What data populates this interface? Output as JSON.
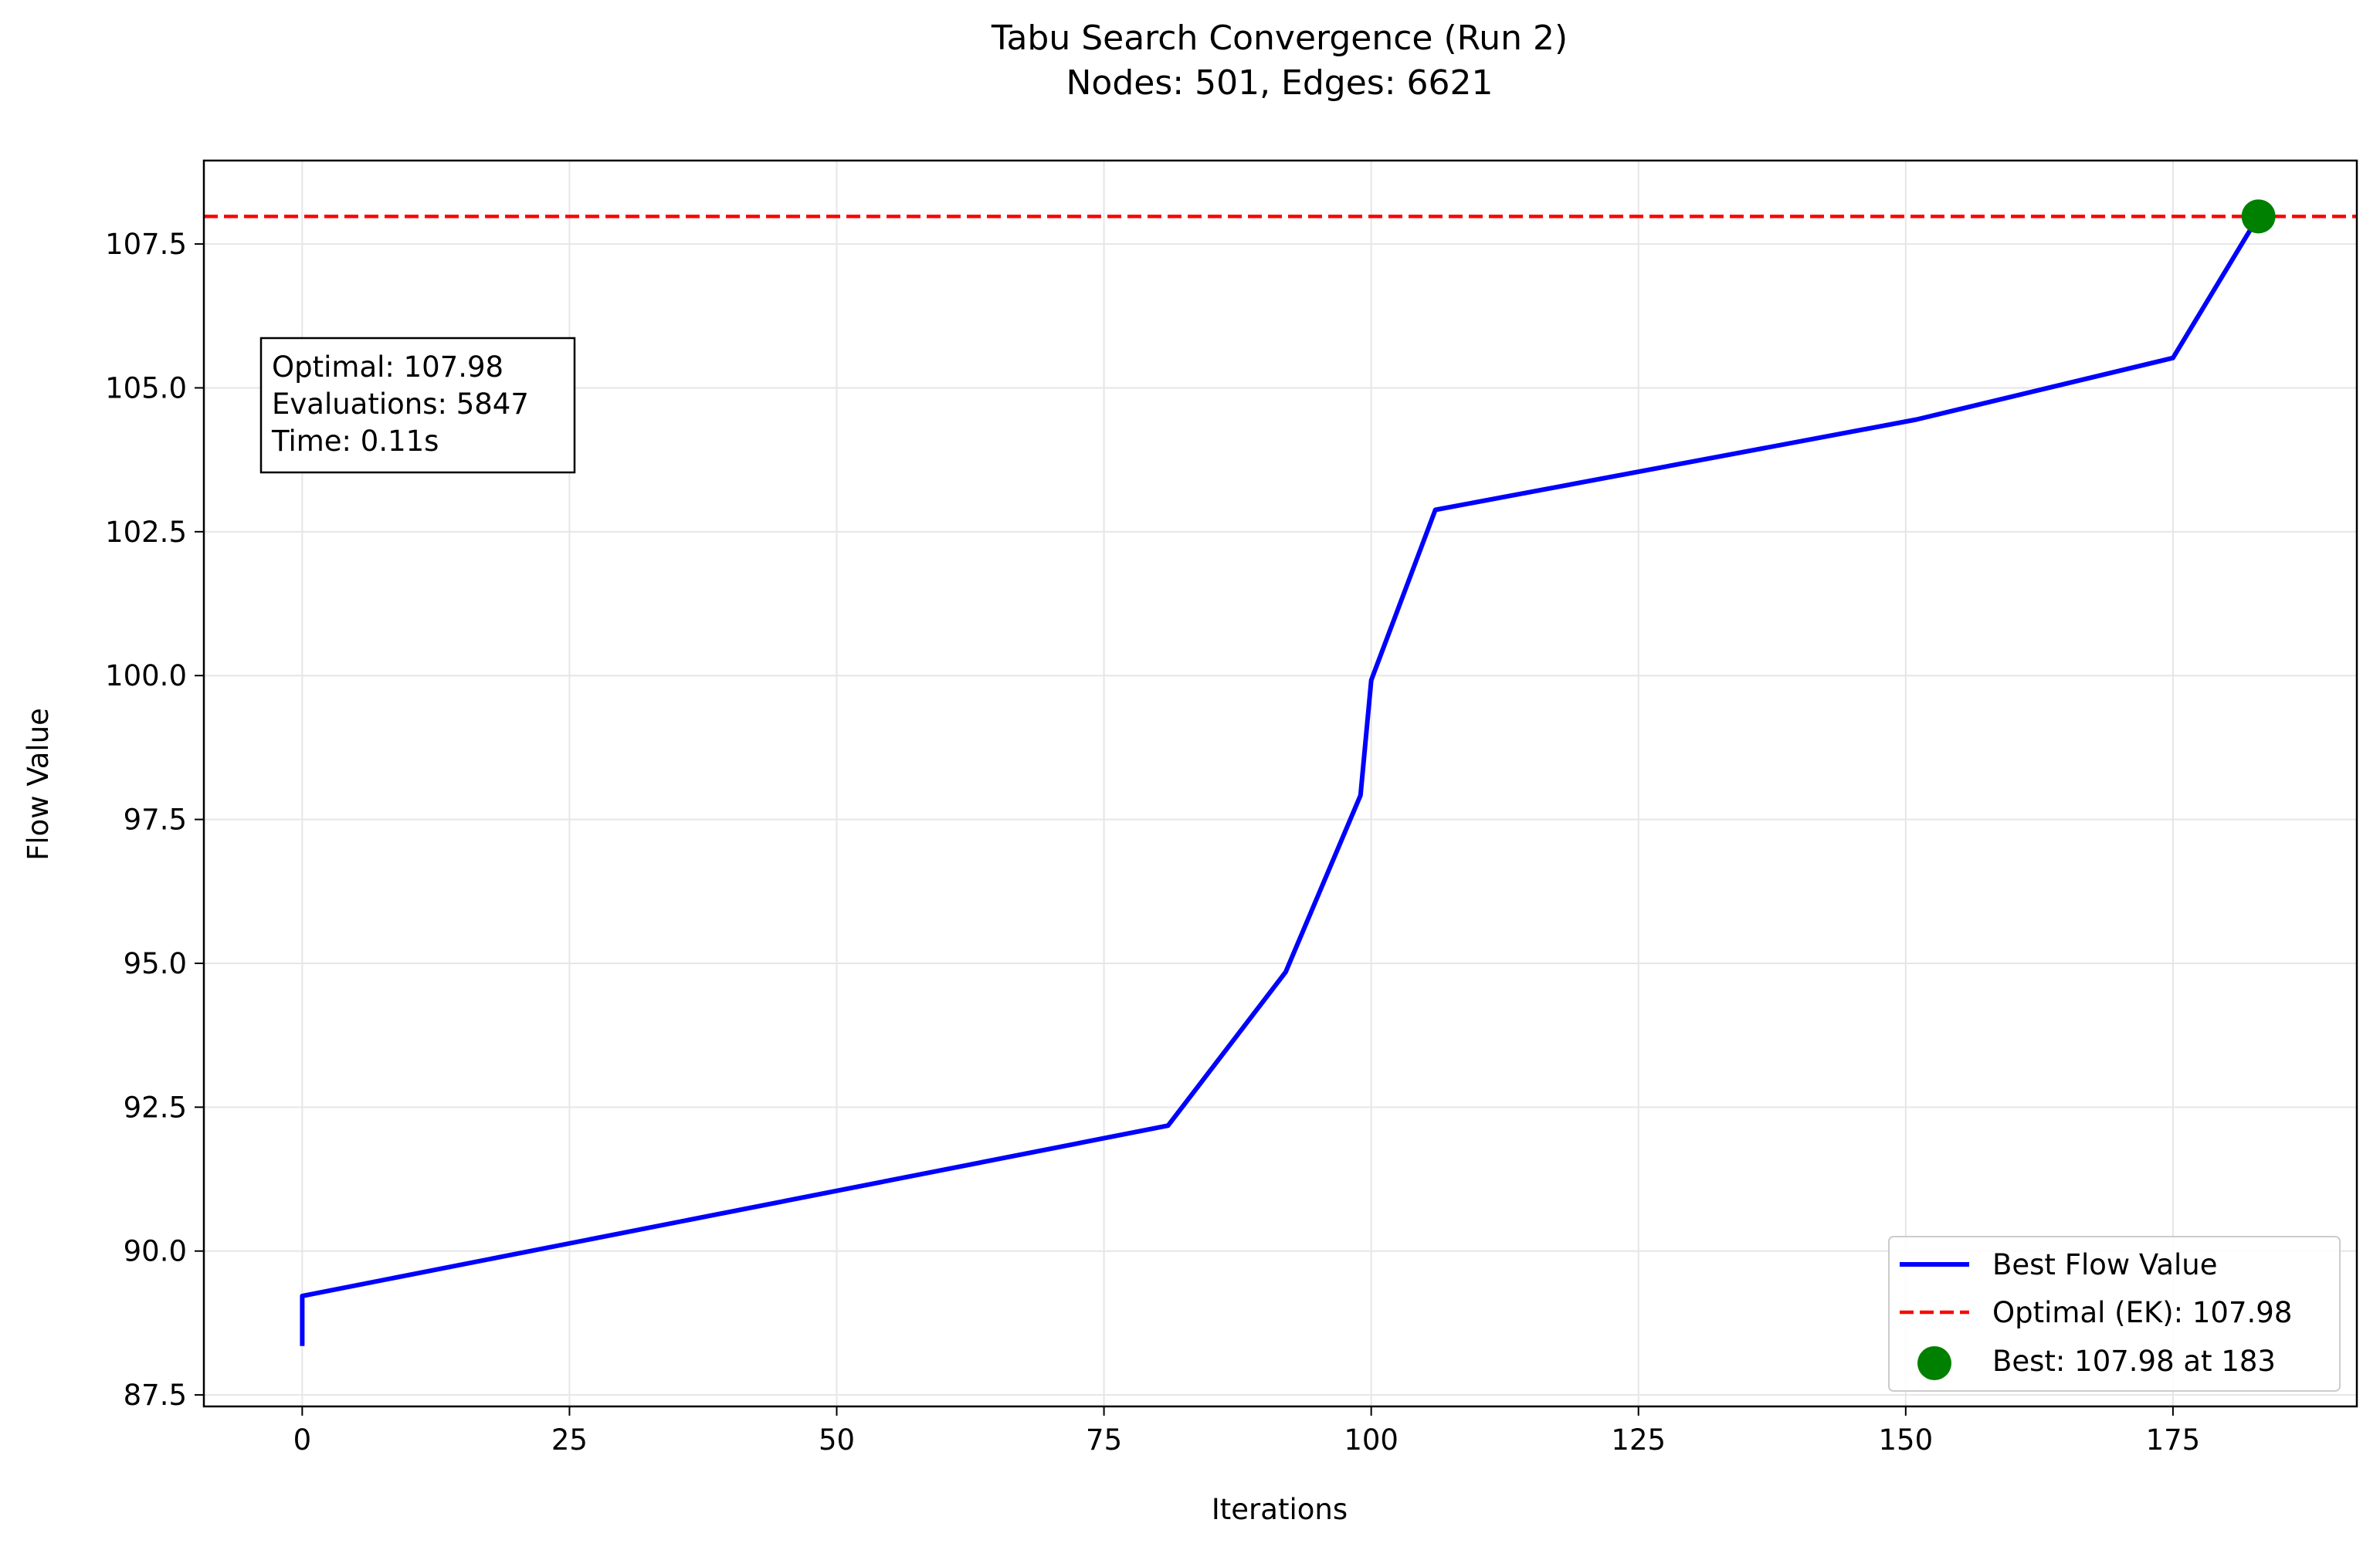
{
  "chart_data": {
    "type": "line",
    "title": "Tabu Search Convergence (Run 2)",
    "subtitle": "Nodes: 501, Edges: 6621",
    "xlabel": "Iterations",
    "ylabel": "Flow Value",
    "xlim": [
      -9.2,
      192.2
    ],
    "ylim": [
      87.3,
      108.95
    ],
    "xticks": [
      0,
      25,
      50,
      75,
      100,
      125,
      150,
      175
    ],
    "yticks": [
      87.5,
      90.0,
      92.5,
      95.0,
      97.5,
      100.0,
      102.5,
      105.0,
      107.5
    ],
    "xtick_labels": [
      "0",
      "25",
      "50",
      "75",
      "100",
      "125",
      "150",
      "175"
    ],
    "ytick_labels": [
      "87.5",
      "90.0",
      "92.5",
      "95.0",
      "97.5",
      "100.0",
      "102.5",
      "105.0",
      "107.5"
    ],
    "grid": true,
    "legend_position": "lower-right",
    "series": [
      {
        "name": "Best Flow Value",
        "color": "#0000ff",
        "style": "solid",
        "x": [
          0,
          0,
          81,
          92,
          99,
          100,
          106,
          151,
          175,
          183
        ],
        "y": [
          88.35,
          89.22,
          92.18,
          94.85,
          97.92,
          99.92,
          102.88,
          104.45,
          105.52,
          107.98
        ]
      }
    ],
    "reference_line": {
      "name": "Optimal (EK): 107.98",
      "y": 107.98,
      "color": "#ff0000",
      "style": "dashed"
    },
    "best_point": {
      "name": "Best: 107.98 at 183",
      "x": 183,
      "y": 107.98,
      "color": "#008000"
    },
    "info_box": {
      "lines": [
        "Optimal: 107.98",
        "Evaluations: 5847",
        "Time: 0.11s"
      ]
    }
  }
}
